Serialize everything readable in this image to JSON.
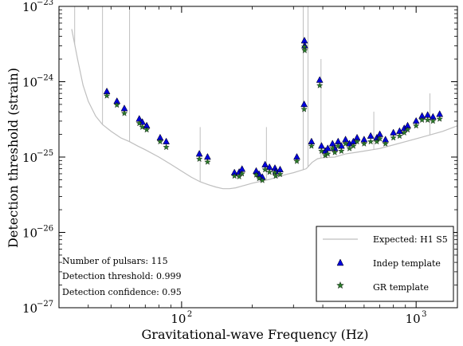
{
  "chart_data": {
    "type": "scatter",
    "xlabel": "Gravitational-wave Frequency (Hz)",
    "ylabel": "Detection threshold (strain)",
    "x_scale": "log",
    "y_scale": "log",
    "xlim": [
      30,
      1500
    ],
    "ylim": [
      1e-27,
      1e-23
    ],
    "grid": false,
    "legend_position": "bottom-right",
    "x_ticks": [
      {
        "value": 100,
        "base": "10",
        "exp": "2"
      },
      {
        "value": 1000,
        "base": "10",
        "exp": "3"
      }
    ],
    "y_ticks": [
      {
        "value": 1e-27,
        "base": "10",
        "exp": "−27"
      },
      {
        "value": 1e-26,
        "base": "10",
        "exp": "−26"
      },
      {
        "value": 1e-25,
        "base": "10",
        "exp": "−25"
      },
      {
        "value": 1e-24,
        "base": "10",
        "exp": "−24"
      },
      {
        "value": 1e-23,
        "base": "10",
        "exp": "−23"
      }
    ],
    "annotations": [
      "Number of pulsars: 115",
      "Detection threshold: 0.999",
      "Detection confidence: 0.95"
    ],
    "series": [
      {
        "name": "Expected: H1 S5",
        "kind": "line",
        "color": "#bfbfbf",
        "x": [
          34,
          36,
          38,
          40,
          43,
          46,
          50,
          55,
          60,
          65,
          70,
          80,
          90,
          100,
          110,
          120,
          130,
          140,
          150,
          160,
          170,
          180,
          190,
          200,
          220,
          240,
          260,
          280,
          300,
          320,
          340,
          360,
          380,
          400,
          450,
          500,
          550,
          600,
          650,
          700,
          800,
          900,
          1000,
          1100,
          1200,
          1300,
          1400,
          1500
        ],
        "y": [
          5e-24,
          2e-24,
          9e-25,
          5.5e-25,
          3.5e-25,
          2.7e-25,
          2.2e-25,
          1.8e-25,
          1.6e-25,
          1.4e-25,
          1.25e-25,
          1e-25,
          8e-26,
          6.5e-26,
          5.4e-26,
          4.7e-26,
          4.3e-26,
          4e-26,
          3.8e-26,
          3.8e-26,
          3.9e-26,
          4.1e-26,
          4.3e-26,
          4.5e-26,
          4.8e-26,
          5.1e-26,
          5.5e-26,
          5.9e-26,
          6.2e-26,
          6.6e-26,
          7e-26,
          8.5e-26,
          9.5e-26,
          9.8e-26,
          1e-25,
          1.1e-25,
          1.15e-25,
          1.2e-25,
          1.25e-25,
          1.3e-25,
          1.45e-25,
          1.6e-25,
          1.75e-25,
          1.9e-25,
          2.05e-25,
          2.2e-25,
          2.4e-25,
          2.6e-25
        ],
        "lines": [
          {
            "x": 35,
            "y": 1e-23
          },
          {
            "x": 46,
            "y": 1e-23
          },
          {
            "x": 60,
            "y": 1e-23
          },
          {
            "x": 120,
            "y": 2.5e-25
          },
          {
            "x": 230,
            "y": 2.5e-25
          },
          {
            "x": 330,
            "y": 1e-23
          },
          {
            "x": 346,
            "y": 1e-23
          },
          {
            "x": 393,
            "y": 2e-24
          },
          {
            "x": 660,
            "y": 4e-25
          },
          {
            "x": 1145,
            "y": 7e-25
          }
        ]
      },
      {
        "name": "Indep template",
        "kind": "marker",
        "marker": "triangle",
        "color": "#0000dd",
        "x": [
          48,
          53,
          57,
          66,
          68,
          71,
          81,
          86,
          119,
          129,
          168,
          176,
          181,
          208,
          214,
          221,
          227,
          237,
          250,
          252,
          263,
          310,
          333,
          334,
          335,
          358,
          388,
          395,
          410,
          420,
          440,
          450,
          465,
          480,
          500,
          520,
          540,
          560,
          600,
          640,
          680,
          700,
          740,
          800,
          850,
          890,
          920,
          1000,
          1060,
          1120,
          1180,
          1260
        ],
        "y": [
          7.4e-25,
          5.5e-25,
          4.4e-25,
          3.2e-25,
          2.9e-25,
          2.6e-25,
          1.8e-25,
          1.6e-25,
          1.1e-25,
          1e-25,
          6.2e-26,
          6.3e-26,
          6.9e-26,
          6.5e-26,
          5.9e-26,
          5.4e-26,
          7.9e-26,
          7.3e-26,
          7.1e-26,
          6.4e-26,
          6.8e-26,
          1e-25,
          5e-25,
          3.5e-24,
          3e-24,
          1.6e-25,
          1.05e-24,
          1.4e-25,
          1.2e-25,
          1.3e-25,
          1.5e-25,
          1.3e-25,
          1.6e-25,
          1.4e-25,
          1.7e-25,
          1.5e-25,
          1.6e-25,
          1.8e-25,
          1.7e-25,
          1.9e-25,
          1.8e-25,
          2e-25,
          1.7e-25,
          2.1e-25,
          2.2e-25,
          2.4e-25,
          2.6e-25,
          3e-25,
          3.5e-25,
          3.6e-25,
          3.4e-25,
          3.7e-25
        ]
      },
      {
        "name": "GR template",
        "kind": "marker",
        "marker": "star",
        "color": "#2a7a2a",
        "x": [
          48,
          53,
          57,
          66,
          68,
          71,
          81,
          86,
          119,
          129,
          168,
          176,
          181,
          208,
          214,
          221,
          227,
          237,
          250,
          252,
          263,
          310,
          333,
          334,
          335,
          358,
          388,
          395,
          410,
          420,
          440,
          450,
          465,
          480,
          500,
          520,
          540,
          560,
          600,
          640,
          680,
          700,
          740,
          800,
          850,
          890,
          920,
          1000,
          1060,
          1120,
          1180,
          1260
        ],
        "y": [
          6.5e-25,
          4.9e-25,
          3.8e-25,
          2.8e-25,
          2.5e-25,
          2.3e-25,
          1.6e-25,
          1.35e-25,
          9.4e-26,
          8.6e-26,
          5.6e-26,
          5.5e-26,
          6e-26,
          5.8e-26,
          5.2e-26,
          4.9e-26,
          6.8e-26,
          6.3e-26,
          6.2e-26,
          5.6e-26,
          5.9e-26,
          8.8e-26,
          4.3e-25,
          2.9e-24,
          2.6e-24,
          1.4e-25,
          8.9e-25,
          1.2e-25,
          1.05e-25,
          1.1e-25,
          1.3e-25,
          1.15e-25,
          1.4e-25,
          1.2e-25,
          1.5e-25,
          1.3e-25,
          1.4e-25,
          1.6e-25,
          1.5e-25,
          1.6e-25,
          1.6e-25,
          1.75e-25,
          1.5e-25,
          1.8e-25,
          1.9e-25,
          2.1e-25,
          2.3e-25,
          2.6e-25,
          3.1e-25,
          3.1e-25,
          3e-25,
          3.2e-25
        ]
      }
    ]
  }
}
